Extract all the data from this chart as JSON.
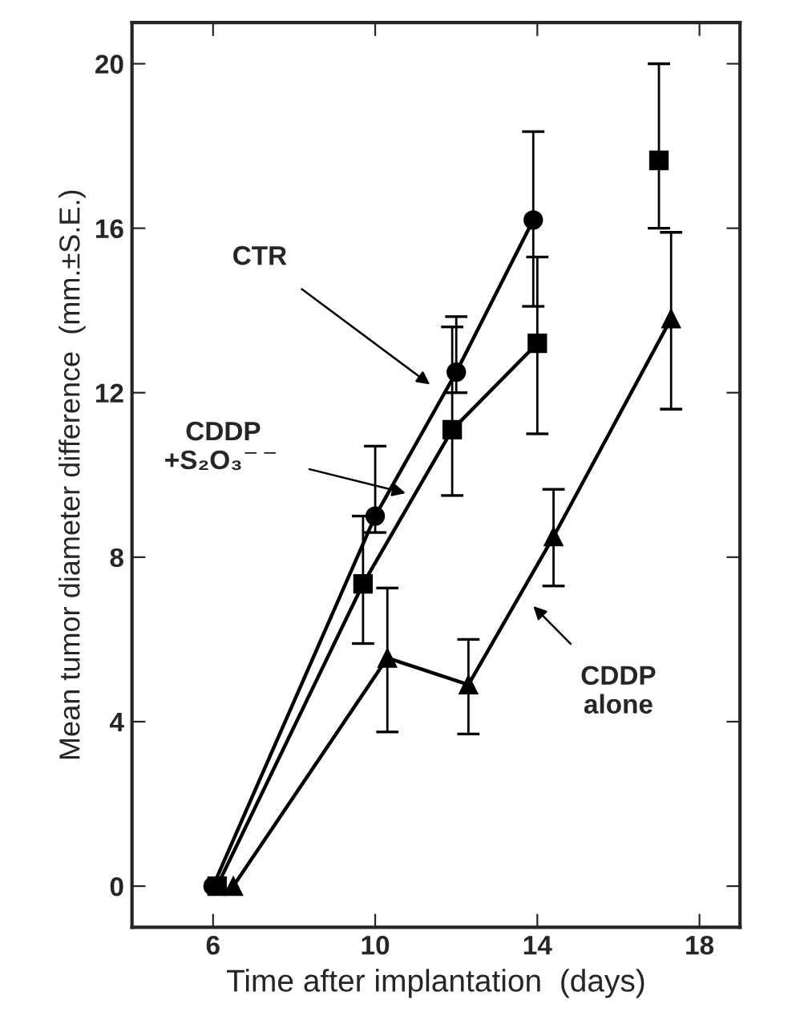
{
  "chart_data": {
    "type": "line",
    "xlabel": "Time after implantation  (days)",
    "ylabel": "Mean tumor diameter difference  (mm.±S.E.)",
    "xlim": [
      4,
      19
    ],
    "xticks": [
      6,
      10,
      14,
      18
    ],
    "ylim": [
      -1,
      21
    ],
    "yticks": [
      0,
      4,
      8,
      12,
      16,
      20
    ],
    "grid": false,
    "line_style": "solid",
    "series": [
      {
        "color": "#000000",
        "marker": "circle",
        "x": [
          6,
          10,
          12,
          13.9
        ],
        "values": [
          0,
          9.0,
          12.5,
          16.2
        ],
        "errors": [
          null,
          [
            8.6,
            10.7
          ],
          [
            12.0,
            13.85
          ],
          [
            14.1,
            18.35
          ]
        ]
      },
      {
        "color": "#000000",
        "marker": "square",
        "x": [
          6.1,
          9.7,
          11.9,
          14
        ],
        "values": [
          0,
          7.35,
          11.1,
          13.2
        ],
        "errors": [
          null,
          [
            5.9,
            9.0
          ],
          [
            9.5,
            13.6
          ],
          [
            11.0,
            15.3
          ]
        ]
      },
      {
        "color": "#000000",
        "marker": "square",
        "x": [
          17.0
        ],
        "values": [
          17.65
        ],
        "errors": [
          [
            16.0,
            20.0
          ]
        ]
      },
      {
        "color": "#000000",
        "marker": "triangle",
        "x": [
          6.5,
          10.3,
          12.3,
          14.4,
          17.3
        ],
        "values": [
          0,
          5.55,
          4.9,
          8.5,
          13.8
        ],
        "errors": [
          null,
          [
            3.75,
            7.25
          ],
          [
            3.7,
            6.0
          ],
          [
            7.3,
            9.65
          ],
          [
            11.6,
            15.9
          ]
        ]
      }
    ],
    "annotations": [
      "CTR",
      "CDDP\n+S₂O₃$^{−−}$",
      "CDDP\nalone"
    ]
  }
}
